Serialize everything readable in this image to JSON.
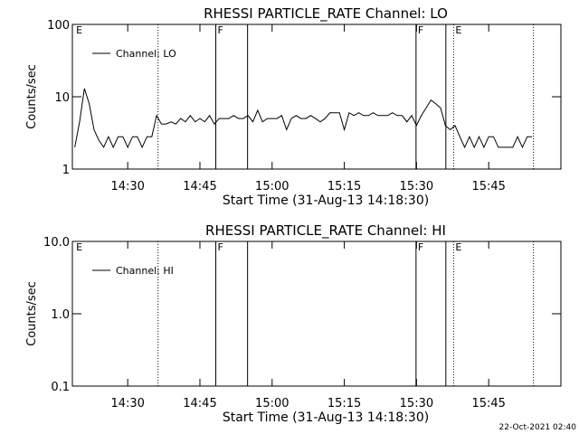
{
  "chart_data": [
    {
      "type": "line",
      "title": "RHESSI PARTICLE_RATE Channel: LO",
      "xlabel": "Start Time (31-Aug-13 14:18:30)",
      "ylabel": "Counts/sec",
      "log_y": true,
      "legend": "upper left",
      "xlim": [
        858.5,
        960
      ],
      "ylim": [
        1,
        100
      ],
      "yticks": [
        1,
        10,
        100
      ],
      "xticks": [
        {
          "value": 870,
          "label": "14:30"
        },
        {
          "value": 885,
          "label": "14:45"
        },
        {
          "value": 900,
          "label": "15:00"
        },
        {
          "value": 915,
          "label": "15:15"
        },
        {
          "value": 930,
          "label": "15:30"
        },
        {
          "value": 945,
          "label": "15:45"
        }
      ],
      "vlines": [
        {
          "x": 876.3,
          "style": "dotted"
        },
        {
          "x": 888.3,
          "style": "solid"
        },
        {
          "x": 894.9,
          "style": "solid"
        },
        {
          "x": 929.9,
          "style": "solid"
        },
        {
          "x": 936.1,
          "style": "solid"
        },
        {
          "x": 937.7,
          "style": "dotted"
        },
        {
          "x": 954.3,
          "style": "dotted"
        }
      ],
      "flags": [
        {
          "text": "E",
          "x": 858.9
        },
        {
          "text": "F",
          "x": 888.3
        },
        {
          "text": "F",
          "x": 929.9
        },
        {
          "text": "E",
          "x": 937.7
        }
      ],
      "x": [
        859,
        860,
        861,
        862,
        863,
        864,
        865,
        866,
        867,
        868,
        869,
        870,
        871,
        872,
        873,
        874,
        875,
        876,
        877,
        878,
        879,
        880,
        881,
        882,
        883,
        884,
        885,
        886,
        887,
        888,
        889,
        890,
        891,
        892,
        893,
        894,
        895,
        896,
        897,
        898,
        899,
        900,
        901,
        902,
        903,
        904,
        905,
        906,
        907,
        908,
        909,
        910,
        911,
        912,
        913,
        914,
        915,
        916,
        917,
        918,
        919,
        920,
        921,
        922,
        923,
        924,
        925,
        926,
        927,
        928,
        929,
        930,
        931,
        932,
        933,
        934,
        935,
        936,
        937,
        938,
        939,
        940,
        941,
        942,
        943,
        944,
        945,
        946,
        947,
        948,
        949,
        950,
        951,
        952,
        953,
        954
      ],
      "series": [
        {
          "name": "Channel: LO",
          "color": "#000000",
          "values": [
            2.0,
            4.5,
            13,
            8,
            3.5,
            2.5,
            2.0,
            2.8,
            2.0,
            2.8,
            2.8,
            2.0,
            2.8,
            2.8,
            2.0,
            2.8,
            2.8,
            5.5,
            4.2,
            4.2,
            4.5,
            4.2,
            5.0,
            4.5,
            5.5,
            4.5,
            5.0,
            4.5,
            5.5,
            4.2,
            5.0,
            5.0,
            5.0,
            5.5,
            5.0,
            5.0,
            5.5,
            4.5,
            6.5,
            4.5,
            5.0,
            5.0,
            5.0,
            5.5,
            3.5,
            5.0,
            5.5,
            5.0,
            5.0,
            5.5,
            5.0,
            4.5,
            5.0,
            6.0,
            6.0,
            6.0,
            3.5,
            6.0,
            5.5,
            6.0,
            5.5,
            5.5,
            6.0,
            5.5,
            5.5,
            5.5,
            6.0,
            5.5,
            5.5,
            4.5,
            5.5,
            4.0,
            5.5,
            7.0,
            9.0,
            8.0,
            7.0,
            4.0,
            3.5,
            4.0,
            2.8,
            2.0,
            2.8,
            2.0,
            2.8,
            2.0,
            2.8,
            2.8,
            2.0,
            2.0,
            2.0,
            2.0,
            2.8,
            2.0,
            2.8,
            2.8
          ]
        }
      ]
    },
    {
      "type": "line",
      "title": "RHESSI PARTICLE_RATE Channel: HI",
      "xlabel": "Start Time (31-Aug-13 14:18:30)",
      "ylabel": "Counts/sec",
      "log_y": true,
      "legend": "upper left",
      "xlim": [
        858.5,
        960
      ],
      "ylim": [
        0.1,
        10
      ],
      "yticks": [
        0.1,
        {
          "value": 1,
          "label": "1.0"
        },
        {
          "value": 10,
          "label": "10.0"
        }
      ],
      "xticks": [
        {
          "value": 870,
          "label": "14:30"
        },
        {
          "value": 885,
          "label": "14:45"
        },
        {
          "value": 900,
          "label": "15:00"
        },
        {
          "value": 915,
          "label": "15:15"
        },
        {
          "value": 930,
          "label": "15:30"
        },
        {
          "value": 945,
          "label": "15:45"
        }
      ],
      "vlines": [
        {
          "x": 876.3,
          "style": "dotted"
        },
        {
          "x": 888.3,
          "style": "solid"
        },
        {
          "x": 894.9,
          "style": "solid"
        },
        {
          "x": 929.9,
          "style": "solid"
        },
        {
          "x": 936.1,
          "style": "solid"
        },
        {
          "x": 937.7,
          "style": "dotted"
        },
        {
          "x": 954.3,
          "style": "dotted"
        }
      ],
      "flags": [
        {
          "text": "E",
          "x": 858.9
        },
        {
          "text": "F",
          "x": 888.3
        },
        {
          "text": "F",
          "x": 929.9
        },
        {
          "text": "E",
          "x": 937.7
        }
      ],
      "x": [],
      "series": [
        {
          "name": "Channel: HI",
          "color": "#000000",
          "values": []
        }
      ]
    }
  ],
  "footer": "22-Oct-2021 02:40"
}
